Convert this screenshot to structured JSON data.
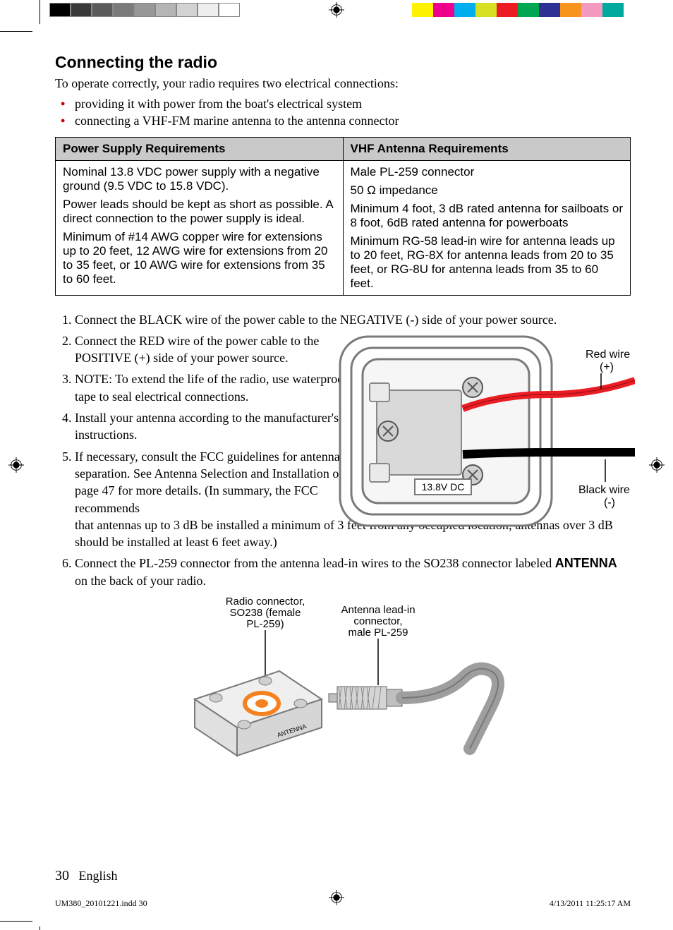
{
  "colorbar": {
    "left": [
      "#000000",
      "#3a3a3a",
      "#5b5b5b",
      "#7a7a7a",
      "#989898",
      "#b5b5b5",
      "#d2d2d2",
      "#eeeeee",
      "#ffffff"
    ],
    "right": [
      "#fff200",
      "#ec008c",
      "#00aeef",
      "#d7df23",
      "#ed1c24",
      "#00a651",
      "#2e3192",
      "#f7941e",
      "#f49ac1",
      "#00a99d"
    ]
  },
  "heading": "Connecting the radio",
  "intro": "To operate correctly, your radio requires two electrical connections:",
  "bullets": [
    "providing it with power from the boat's electrical system",
    "connecting a VHF-FM marine antenna to the antenna connector"
  ],
  "table": {
    "headers": [
      "Power Supply Requirements",
      "VHF Antenna Requirements"
    ],
    "col1": [
      "Nominal 13.8 VDC power supply with a negative ground (9.5 VDC to 15.8 VDC).",
      "Power leads should be kept as short as possible. A direct connection to the power supply is ideal.",
      "Minimum of #14 AWG copper wire for extensions up to 20 feet, 12 AWG wire for extensions from 20 to 35 feet, or 10 AWG wire for extensions from 35 to 60 feet."
    ],
    "col2": [
      "Male PL-259 connector",
      "50 Ω impedance",
      "Minimum 4 foot, 3 dB rated antenna for sailboats or 8 foot, 6dB rated antenna for powerboats",
      "Minimum RG-58 lead-in wire for antenna leads up to 20 feet, RG-8X for antenna leads from 20 to 35 feet, or RG-8U for antenna leads from 35 to 60 feet."
    ]
  },
  "steps": {
    "s1": "Connect the BLACK wire of the power cable to the NEGATIVE (-) side of your power source.",
    "s2": "Connect the RED wire of the power cable to the POSITIVE (+) side of your power source.",
    "s3": "NOTE: To extend the life of the radio, use waterproof tape to seal electrical connections.",
    "s4": "Install your antenna according to the manufacturer's instructions.",
    "s5": "If necessary, consult the FCC guidelines for antenna separation. See Antenna Selection and Installation on page 47 for more details. (In summary, the FCC recommends that antennas up to 3 dB be installed a minimum of 3 feet from any occupied location; antennas over 3 dB should be installed at least 6 feet away.)",
    "s6_a": "Connect the PL-259 connector from the antenna lead-in wires to the SO238 connector labeled ",
    "s6_b": "ANTENNA",
    "s6_c": " on the back of your radio."
  },
  "fig1": {
    "red_label_1": "Red wire",
    "red_label_2": "(+)",
    "black_label_1": "Black wire",
    "black_label_2": "(-)",
    "dc_label": "13.8V DC",
    "colors": {
      "outline": "#7a7a7a",
      "fill": "#f6f6f6",
      "black_wire": "#000000",
      "red_wire": "#ec1c24",
      "screw": "#9c9c9c"
    }
  },
  "fig2": {
    "label_left_1": "Radio connector,",
    "label_left_2": "SO238 (female",
    "label_left_3": "PL-259)",
    "label_right_1": "Antenna lead-in",
    "label_right_2": "connector,",
    "label_right_3": "male PL-259",
    "antenna_text": "ANTENNA",
    "colors": {
      "orange": "#f58220",
      "plate": "#efefef",
      "tip": "#bfbfbf",
      "cable": "#9e9e9e",
      "outline": "#7a7a7a"
    }
  },
  "footer": {
    "page_num": "30",
    "lang": "English"
  },
  "imprint": {
    "file": "UM380_20101221.indd   30",
    "date": "4/13/2011   11:25:17 AM"
  }
}
